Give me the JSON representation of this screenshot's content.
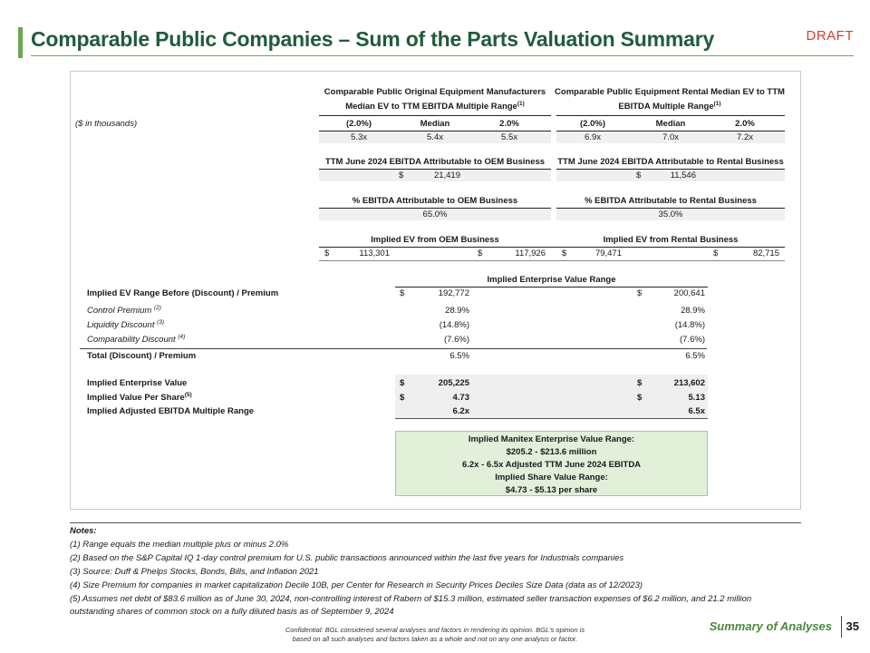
{
  "header": {
    "title": "Comparable Public Companies – Sum of the Parts Valuation Summary",
    "draft": "DRAFT"
  },
  "oem": {
    "header_line1": "Comparable Public Original Equipment Manufacturers",
    "header_line2": "Median EV to TTM EBITDA Multiple Range",
    "header_sup": "(1)",
    "col_low": "(2.0%)",
    "col_mid": "Median",
    "col_high": "2.0%",
    "mult_low": "5.3x",
    "mult_mid": "5.4x",
    "mult_high": "5.5x",
    "ebitda_label": "TTM June 2024 EBITDA Attributable to OEM Business",
    "ebitda_cur": "$",
    "ebitda_value": "21,419",
    "pct_label": "% EBITDA Attributable to OEM Business",
    "pct_value": "65.0%",
    "ev_label": "Implied EV from OEM Business",
    "ev_low_cur": "$",
    "ev_low": "113,301",
    "ev_high_cur": "$",
    "ev_high": "117,926"
  },
  "rental": {
    "header_line1": "Comparable Public Equipment Rental Median EV to TTM",
    "header_line2": "EBITDA Multiple Range",
    "header_sup": "(1)",
    "col_low": "(2.0%)",
    "col_mid": "Median",
    "col_high": "2.0%",
    "mult_low": "6.9x",
    "mult_mid": "7.0x",
    "mult_high": "7.2x",
    "ebitda_label": "TTM June 2024 EBITDA Attributable to Rental Business",
    "ebitda_cur": "$",
    "ebitda_value": "11,546",
    "pct_label": "% EBITDA Attributable to Rental Business",
    "pct_value": "35.0%",
    "ev_label": "Implied EV from Rental Business",
    "ev_low_cur": "$",
    "ev_low": "79,471",
    "ev_high_cur": "$",
    "ev_high": "82,715"
  },
  "units_label": "($ in thousands)",
  "range": {
    "header": "Implied Enterprise Value Range",
    "rows": [
      {
        "label": "Implied EV Range Before (Discount) / Premium",
        "sup": "",
        "low_cur": "$",
        "low": "192,772",
        "high_cur": "$",
        "high": "200,641"
      },
      {
        "label": "Control Premium",
        "sup": "(2)",
        "low_cur": "",
        "low": "28.9%",
        "high_cur": "",
        "high": "28.9%"
      },
      {
        "label": "Liquidity Discount",
        "sup": "(3)",
        "low_cur": "",
        "low": "(14.8%)",
        "high_cur": "",
        "high": "(14.8%)"
      },
      {
        "label": "Comparability Discount",
        "sup": "(4)",
        "low_cur": "",
        "low": "(7.6%)",
        "high_cur": "",
        "high": "(7.6%)"
      },
      {
        "label": "Total (Discount) / Premium",
        "sup": "",
        "low_cur": "",
        "low": "6.5%",
        "high_cur": "",
        "high": "6.5%"
      },
      {
        "label": "Implied Enterprise Value",
        "sup": "",
        "low_cur": "$",
        "low": "205,225",
        "high_cur": "$",
        "high": "213,602"
      },
      {
        "label": "Implied Value Per Share",
        "sup": "(5)",
        "low_cur": "$",
        "low": "4.73",
        "high_cur": "$",
        "high": "5.13"
      },
      {
        "label": "Implied Adjusted EBITDA Multiple Range",
        "sup": "",
        "low_cur": "",
        "low": "6.2x",
        "high_cur": "",
        "high": "6.5x"
      }
    ]
  },
  "summary_box": [
    "Implied Manitex Enterprise Value Range:",
    "$205.2 - $213.6 million",
    "6.2x - 6.5x Adjusted TTM June 2024 EBITDA",
    "Implied Share Value Range:",
    "$4.73 - $5.13 per share"
  ],
  "notes": {
    "heading": "Notes:",
    "lines": [
      "(1) Range equals the median multiple plus or minus 2.0%",
      "(2) Based on the S&P Capital IQ 1-day control premium for U.S. public transactions announced within the last five years for Industrials companies",
      "(3) Source: Duff & Phelps Stocks, Bonds, Bills, and Inflation 2021",
      "(4) Size Premium for companies in market capitalization Decile 10B, per Center for Research in Security Prices Deciles Size Data (data as of 12/2023)",
      "(5) Assumes net debt of $83.6 million as of June 30, 2024, non-controlling interest of Rabern of $15.3 million, estimated seller transaction expenses of $6.2 million, and 21.2 million",
      "outstanding shares of common stock on a fully diluted basis as of September 9, 2024"
    ]
  },
  "footer": {
    "confidential_1": "Confidential: BGL considered several analyses and factors in rendering its opinion. BGL's opinion is",
    "confidential_2": "based on all such analyses and factors taken as a whole and not on any one analysis or factor.",
    "section": "Summary of Analyses",
    "page": "35"
  }
}
